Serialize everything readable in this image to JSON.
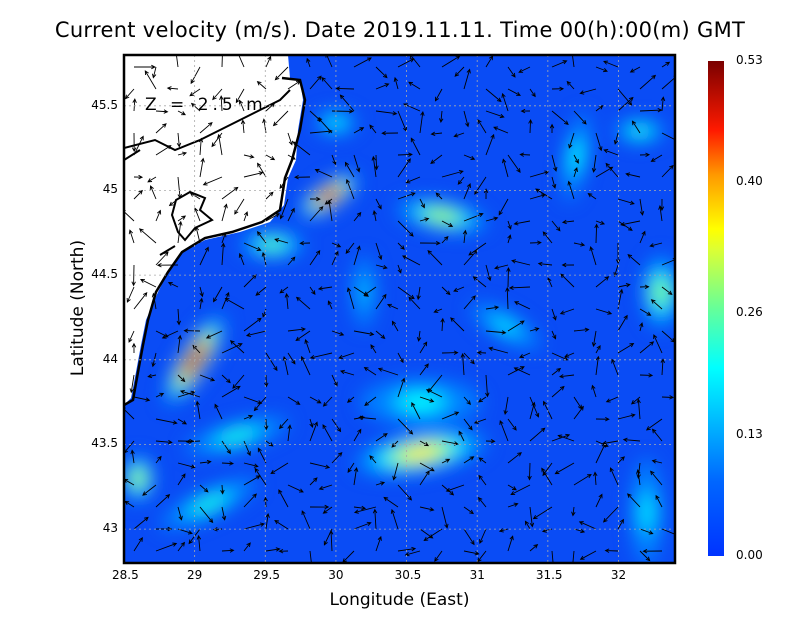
{
  "chart_data": {
    "type": "heatmap",
    "title": "Current velocity (m/s). Date 2019.11.11. Time 00(h):00(m) GMT",
    "xlabel": "Longitude (East)",
    "ylabel": "Latitude (North)",
    "annotation": "Z = 2.5 m",
    "xlim": [
      28.5,
      32.4
    ],
    "ylim": [
      42.8,
      45.8
    ],
    "xticks": [
      "28.5",
      "29",
      "29.5",
      "30",
      "30.5",
      "31",
      "31.5",
      "32"
    ],
    "xtick_values": [
      28.5,
      29,
      29.5,
      30,
      30.5,
      31,
      31.5,
      32
    ],
    "yticks": [
      "43",
      "43.5",
      "44",
      "44.5",
      "45",
      "45.5"
    ],
    "ytick_values": [
      43,
      43.5,
      44,
      44.5,
      45,
      45.5
    ],
    "grid": true,
    "colorbar": {
      "ticks": [
        "0.00",
        "0.13",
        "0.26",
        "0.40",
        "0.53"
      ],
      "values": [
        0,
        0.13,
        0.26,
        0.4,
        0.53
      ],
      "placement": "right"
    },
    "hotspots": [
      {
        "lon": 29.0,
        "lat": 44.0,
        "speed": 0.5,
        "len": 0.35,
        "wid": 0.07,
        "angle": -58
      },
      {
        "lon": 29.95,
        "lat": 44.97,
        "speed": 0.48,
        "len": 0.22,
        "wid": 0.06,
        "angle": -35
      },
      {
        "lon": 30.6,
        "lat": 43.45,
        "speed": 0.36,
        "len": 0.45,
        "wid": 0.1,
        "angle": -10
      },
      {
        "lon": 30.75,
        "lat": 44.85,
        "speed": 0.3,
        "len": 0.3,
        "wid": 0.07,
        "angle": 10
      },
      {
        "lon": 30.6,
        "lat": 43.75,
        "speed": 0.2,
        "len": 0.4,
        "wid": 0.12,
        "angle": 0
      },
      {
        "lon": 32.3,
        "lat": 44.4,
        "speed": 0.28,
        "len": 0.1,
        "wid": 0.2,
        "angle": 0
      },
      {
        "lon": 29.55,
        "lat": 44.68,
        "speed": 0.26,
        "len": 0.2,
        "wid": 0.06,
        "angle": 0
      },
      {
        "lon": 29.3,
        "lat": 43.55,
        "speed": 0.22,
        "len": 0.35,
        "wid": 0.06,
        "angle": -15
      },
      {
        "lon": 29.1,
        "lat": 43.15,
        "speed": 0.22,
        "len": 0.35,
        "wid": 0.06,
        "angle": -25
      },
      {
        "lon": 28.6,
        "lat": 43.3,
        "speed": 0.3,
        "len": 0.08,
        "wid": 0.12,
        "angle": 0
      },
      {
        "lon": 32.15,
        "lat": 45.35,
        "speed": 0.22,
        "len": 0.15,
        "wid": 0.05,
        "angle": 0
      },
      {
        "lon": 31.7,
        "lat": 45.2,
        "speed": 0.2,
        "len": 0.05,
        "wid": 0.25,
        "angle": 10
      },
      {
        "lon": 31.2,
        "lat": 44.2,
        "speed": 0.18,
        "len": 0.25,
        "wid": 0.06,
        "angle": 30
      },
      {
        "lon": 30.0,
        "lat": 45.4,
        "speed": 0.2,
        "len": 0.12,
        "wid": 0.05,
        "angle": 0
      },
      {
        "lon": 32.2,
        "lat": 43.1,
        "speed": 0.18,
        "len": 0.08,
        "wid": 0.3,
        "angle": 0
      },
      {
        "lon": 30.2,
        "lat": 44.4,
        "speed": 0.15,
        "len": 0.05,
        "wid": 0.2,
        "angle": 0
      }
    ]
  }
}
